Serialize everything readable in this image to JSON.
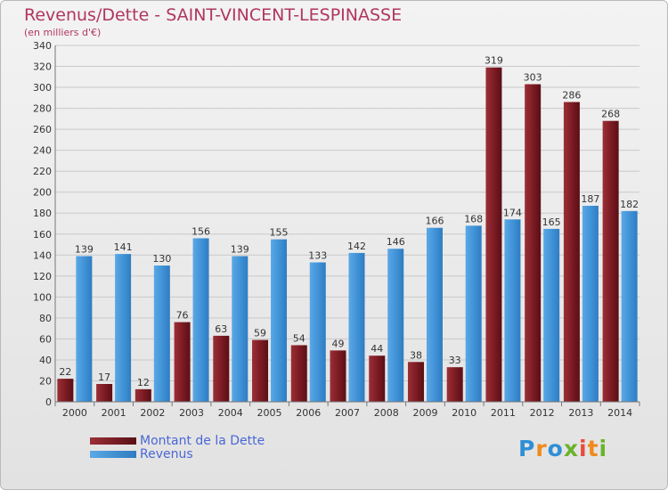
{
  "title": "Revenus/Dette - SAINT-VINCENT-LESPINASSE",
  "subtitle": "(en milliers d'€)",
  "logo": {
    "letters": [
      "P",
      "r",
      "o",
      "x",
      "i",
      "t",
      "i"
    ],
    "colors": [
      "#2f8fd6",
      "#f08a1d",
      "#2f8fd6",
      "#6bb32a",
      "#e84c3d",
      "#f08a1d",
      "#6bb32a"
    ]
  },
  "colors": {
    "dette": "#7a1a22",
    "revenus": "#3d8fd4",
    "title": "#b0365f",
    "legend_text": "#4a67d6"
  },
  "chart_data": {
    "type": "bar",
    "title": "Revenus/Dette - SAINT-VINCENT-LESPINASSE",
    "subtitle": "(en milliers d'€)",
    "categories": [
      "2000",
      "2001",
      "2002",
      "2003",
      "2004",
      "2005",
      "2006",
      "2007",
      "2008",
      "2009",
      "2010",
      "2011",
      "2012",
      "2013",
      "2014"
    ],
    "series": [
      {
        "name": "Montant de la Dette",
        "values": [
          22,
          17,
          12,
          76,
          63,
          59,
          54,
          49,
          44,
          38,
          33,
          319,
          303,
          286,
          268
        ]
      },
      {
        "name": "Revenus",
        "values": [
          139,
          141,
          130,
          156,
          139,
          155,
          133,
          142,
          146,
          166,
          168,
          174,
          165,
          187,
          182
        ]
      }
    ],
    "ylim": [
      0,
      340
    ],
    "yticks": [
      0,
      20,
      40,
      60,
      80,
      100,
      120,
      140,
      160,
      180,
      200,
      220,
      240,
      260,
      280,
      300,
      320,
      340
    ],
    "grid": true,
    "legend": "bottom-left"
  }
}
